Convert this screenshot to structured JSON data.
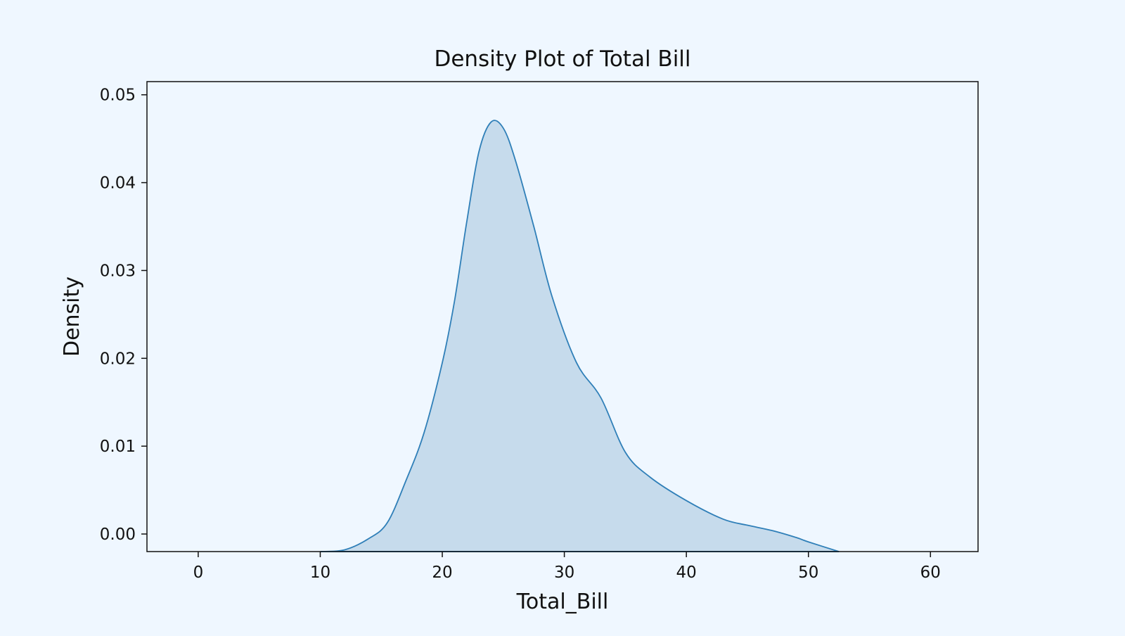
{
  "colors": {
    "background": "#eff7ff",
    "plot_background": "#eff7ff",
    "axis": "#111111",
    "line": "#2f7fb8",
    "fill": "#c6dbec"
  },
  "chart_data": {
    "type": "area",
    "title": "Density Plot of Total Bill",
    "xlabel": "Total_Bill",
    "ylabel": "Density",
    "xlim": [
      -4.2,
      63.9
    ],
    "ylim": [
      -0.002,
      0.0515
    ],
    "xticks": [
      0,
      10,
      20,
      30,
      40,
      50,
      60
    ],
    "yticks": [
      0.0,
      0.01,
      0.02,
      0.03,
      0.04,
      0.05
    ],
    "xtick_labels": [
      "0",
      "10",
      "20",
      "30",
      "40",
      "50",
      "60"
    ],
    "ytick_labels": [
      "0.00",
      "0.01",
      "0.02",
      "0.03",
      "0.04",
      "0.05"
    ],
    "grid": false,
    "baseline": -0.002,
    "series": [
      {
        "x": [
          10,
          12,
          14,
          15.5,
          17,
          18.5,
          20,
          21,
          22,
          23,
          24,
          25,
          26,
          27.5,
          29,
          31,
          33,
          35,
          37,
          40,
          43,
          45,
          47,
          49,
          50,
          52.5
        ],
        "values": [
          -0.002,
          -0.0018,
          -0.0005,
          0.0013,
          0.006,
          0.0115,
          0.0195,
          0.0265,
          0.0355,
          0.0435,
          0.0469,
          0.0462,
          0.0425,
          0.035,
          0.027,
          0.0195,
          0.0155,
          0.0093,
          0.0065,
          0.0038,
          0.0017,
          0.001,
          0.0004,
          -0.0004,
          -0.0009,
          -0.002
        ]
      }
    ]
  }
}
